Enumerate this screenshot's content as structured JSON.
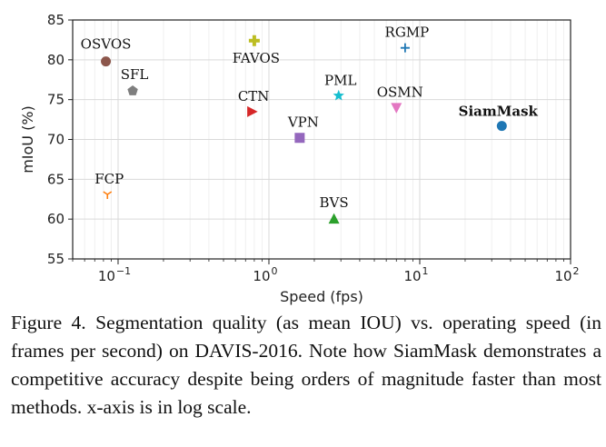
{
  "chart_data": {
    "type": "scatter",
    "title": "",
    "xlabel": "Speed (fps)",
    "ylabel": "mIoU (%)",
    "xscale": "log",
    "xlim": [
      0.05,
      100
    ],
    "ylim": [
      55,
      85
    ],
    "xticks": [
      {
        "value": 0.1,
        "base": "10",
        "exp": "−1"
      },
      {
        "value": 1,
        "base": "10",
        "exp": "0"
      },
      {
        "value": 10,
        "base": "10",
        "exp": "1"
      },
      {
        "value": 100,
        "base": "10",
        "exp": "2"
      }
    ],
    "yticks": [
      55,
      60,
      65,
      70,
      75,
      80,
      85
    ],
    "grid": true,
    "points": [
      {
        "name": "OSVOS",
        "x": 0.083,
        "y": 79.8,
        "marker": "circle",
        "color": "#8c564b",
        "bold": false
      },
      {
        "name": "SFL",
        "x": 0.125,
        "y": 76.1,
        "marker": "pentagon",
        "color": "#7f7f7f",
        "bold": false
      },
      {
        "name": "FCP",
        "x": 0.085,
        "y": 63.1,
        "marker": "tri_down",
        "color": "#ff7f0e",
        "bold": false
      },
      {
        "name": "FAVOS",
        "x": 0.8,
        "y": 82.4,
        "marker": "plus_filled",
        "color": "#bcbd22",
        "bold": false
      },
      {
        "name": "CTN",
        "x": 0.77,
        "y": 73.5,
        "marker": "triangle_right",
        "color": "#d62728",
        "bold": false
      },
      {
        "name": "VPN",
        "x": 1.6,
        "y": 70.2,
        "marker": "square",
        "color": "#9467bd",
        "bold": false
      },
      {
        "name": "PML",
        "x": 2.9,
        "y": 75.5,
        "marker": "star",
        "color": "#17becf",
        "bold": false
      },
      {
        "name": "BVS",
        "x": 2.7,
        "y": 60.0,
        "marker": "triangle_up",
        "color": "#2ca02c",
        "bold": false
      },
      {
        "name": "RGMP",
        "x": 8.0,
        "y": 81.5,
        "marker": "plus",
        "color": "#1f77b4",
        "bold": false
      },
      {
        "name": "OSMN",
        "x": 7.0,
        "y": 74.0,
        "marker": "triangle_down",
        "color": "#e377c2",
        "bold": false
      },
      {
        "name": "SiamMask",
        "x": 35,
        "y": 71.7,
        "marker": "circle",
        "color": "#1f77b4",
        "bold": true
      }
    ]
  },
  "caption": "Figure 4. Segmentation quality (as mean IOU) vs. operating speed (in frames per second) on DAVIS-2016. Note how SiamMask demonstrates a competitive accuracy despite being orders of magnitude faster than most methods. x-axis is in log scale."
}
